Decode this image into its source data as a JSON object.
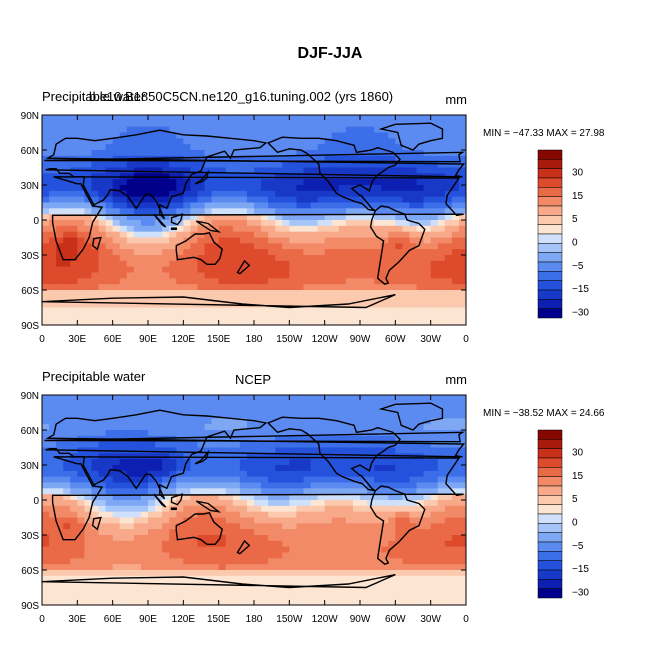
{
  "title": "DJF-JJA",
  "chart_data": [
    {
      "type": "heatmap",
      "title": "Precipitable water",
      "subtitle": "b.e10.B1850C5CN.ne120_g16.tuning.002 (yrs 1860)",
      "units": "mm",
      "stats": "MIN = −47.33 MAX =  27.98",
      "min": -47.33,
      "max": 27.98,
      "xlim": [
        0,
        360
      ],
      "ylim": [
        -90,
        90
      ],
      "x_ticks": [
        "0",
        "30E",
        "60E",
        "90E",
        "120E",
        "150E",
        "180",
        "150W",
        "120W",
        "90W",
        "60W",
        "30W",
        "0"
      ],
      "y_ticks": [
        "90S",
        "60S",
        "30S",
        "0",
        "30N",
        "60N",
        "90N"
      ],
      "levels": [
        -40,
        -35,
        -30,
        -25,
        -20,
        -15,
        -10,
        -5,
        -2,
        0,
        2,
        5,
        10,
        15,
        20,
        25,
        30,
        35
      ],
      "colorbar_labels": [
        "30",
        "15",
        "5",
        "0",
        "−5",
        "−15",
        "−30"
      ],
      "grid": false,
      "legend_position": "right"
    },
    {
      "type": "heatmap",
      "title": "Precipitable water",
      "subtitle": "NCEP",
      "units": "mm",
      "stats": "MIN = −38.52 MAX =  24.66",
      "min": -38.52,
      "max": 24.66,
      "xlim": [
        0,
        360
      ],
      "ylim": [
        -90,
        90
      ],
      "x_ticks": [
        "0",
        "30E",
        "60E",
        "90E",
        "120E",
        "150E",
        "180",
        "150W",
        "120W",
        "90W",
        "60W",
        "30W",
        "0"
      ],
      "y_ticks": [
        "90S",
        "60S",
        "30S",
        "0",
        "30N",
        "60N",
        "90N"
      ],
      "levels": [
        -40,
        -35,
        -30,
        -25,
        -20,
        -15,
        -10,
        -5,
        -2,
        0,
        2,
        5,
        10,
        15,
        20,
        25,
        30,
        35
      ],
      "colorbar_labels": [
        "30",
        "15",
        "5",
        "0",
        "−5",
        "−15",
        "−30"
      ],
      "grid": false,
      "legend_position": "right"
    }
  ],
  "colors": {
    "palette": [
      "#00008a",
      "#0c1fb0",
      "#1838c8",
      "#2552dc",
      "#3b6ee8",
      "#5b8bf0",
      "#7fa8f4",
      "#a5c4f7",
      "#cfe0fb",
      "#fde5d3",
      "#fbc9ad",
      "#f8a98a",
      "#f28a68",
      "#ea6a48",
      "#de4b2c",
      "#c9301a",
      "#a81a0c",
      "#860700"
    ],
    "land_outline": "#000000"
  }
}
